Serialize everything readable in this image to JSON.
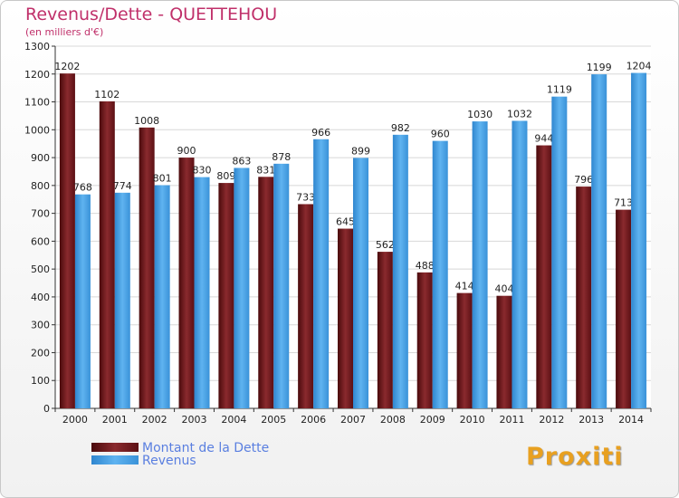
{
  "chart_data": {
    "type": "bar",
    "title": "Revenus/Dette - QUETTEHOU",
    "subtitle": "(en milliers d'€)",
    "categories": [
      "2000",
      "2001",
      "2002",
      "2003",
      "2004",
      "2005",
      "2006",
      "2007",
      "2008",
      "2009",
      "2010",
      "2011",
      "2012",
      "2013",
      "2014"
    ],
    "series": [
      {
        "name": "Montant de la Dette",
        "color": "#7a1e22",
        "values": [
          1202,
          1102,
          1008,
          900,
          809,
          831,
          733,
          645,
          562,
          488,
          414,
          404,
          944,
          796,
          713
        ]
      },
      {
        "name": "Revenus",
        "color": "#4aa3e6",
        "values": [
          768,
          774,
          801,
          830,
          863,
          878,
          966,
          899,
          982,
          960,
          1030,
          1032,
          1119,
          1199,
          1204
        ]
      }
    ],
    "ylim": [
      0,
      1300
    ],
    "yticks": [
      0,
      100,
      200,
      300,
      400,
      500,
      600,
      700,
      800,
      900,
      1000,
      1100,
      1200,
      1300
    ],
    "grid": true,
    "legend": "bottom-left"
  },
  "brand": "Proxiti"
}
